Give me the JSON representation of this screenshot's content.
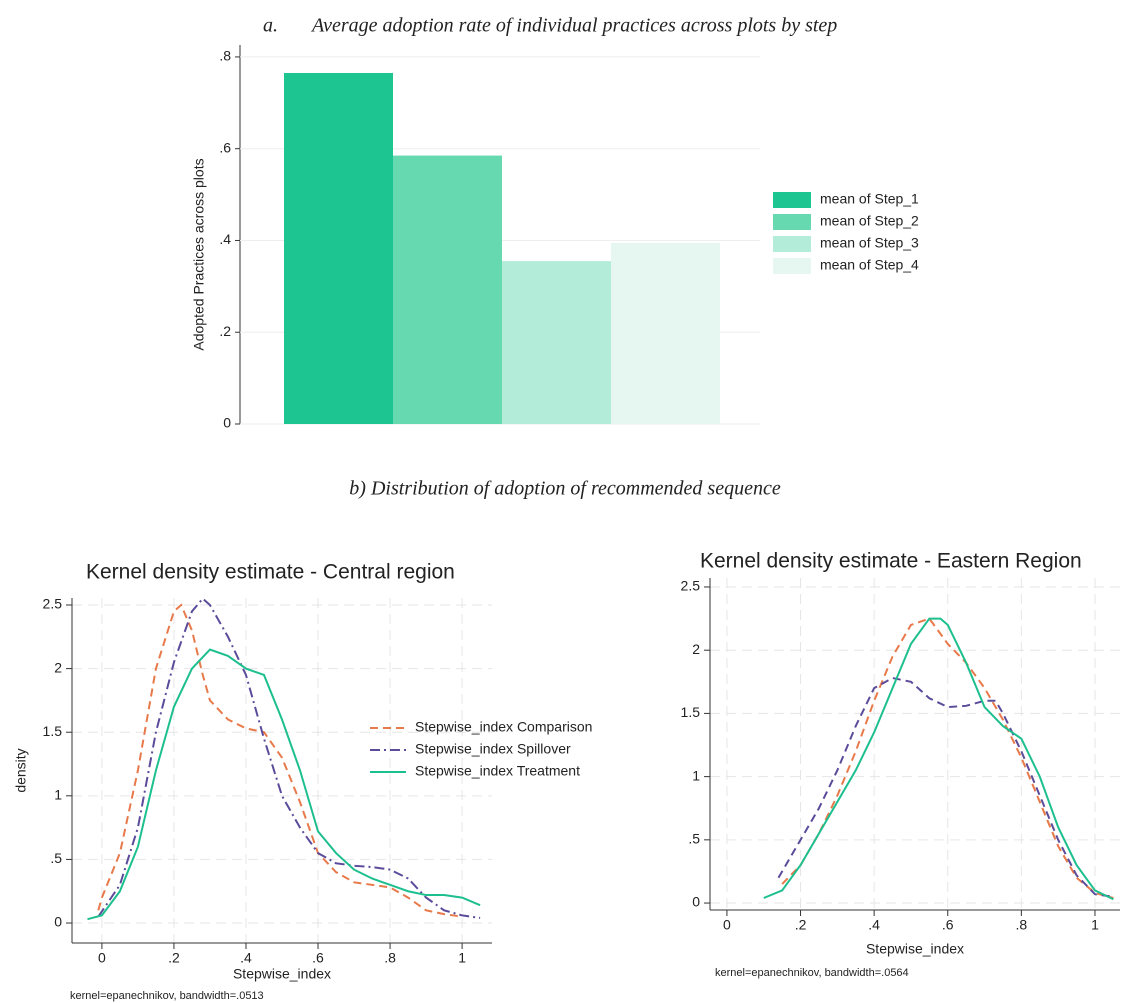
{
  "chart_data": [
    {
      "type": "bar",
      "panel_label": "a.",
      "title": "Average adoption rate of individual practices across plots by step",
      "ylabel": "Adopted Practices across plots",
      "series": [
        {
          "name": "mean of Step_1",
          "color": "#1dc690",
          "values": [
            0.765
          ]
        },
        {
          "name": "mean of Step_2",
          "color": "#66d9b1",
          "values": [
            0.585
          ]
        },
        {
          "name": "mean of Step_3",
          "color": "#b3ecd8",
          "values": [
            0.355
          ]
        },
        {
          "name": "mean of Step_4",
          "color": "#e6f7f1",
          "values": [
            0.395
          ]
        }
      ],
      "ylim": [
        0,
        0.826
      ],
      "yticks": [
        0,
        {
          "value": 0.2,
          "label": ".2"
        },
        {
          "value": 0.4,
          "label": ".4"
        },
        {
          "value": 0.6,
          "label": ".6"
        },
        {
          "value": 0.8,
          "label": ".8"
        }
      ],
      "grid": true,
      "legend": "right"
    },
    {
      "type": "line",
      "title": "Kernel density estimate - Central region",
      "xlabel": "Stepwise_index",
      "ylabel": "density",
      "note": "kernel=epanechnikov, bandwidth=.0513",
      "series": [
        {
          "name": "Stepwise_index Comparison",
          "color": "#e8794a",
          "linestyle": "dashed",
          "x": [
            -0.01,
            0,
            0.05,
            0.1,
            0.15,
            0.2,
            0.22,
            0.25,
            0.28,
            0.3,
            0.35,
            0.4,
            0.45,
            0.5,
            0.55,
            0.6,
            0.65,
            0.7,
            0.8,
            0.85,
            0.9,
            0.95,
            1.0
          ],
          "values": [
            0.1,
            0.2,
            0.55,
            1.2,
            2.0,
            2.45,
            2.5,
            2.3,
            1.95,
            1.75,
            1.6,
            1.53,
            1.5,
            1.3,
            0.95,
            0.55,
            0.4,
            0.32,
            0.28,
            0.2,
            0.1,
            0.07,
            0.05
          ]
        },
        {
          "name": "Stepwise_index Spillover",
          "color": "#5b4b9a",
          "linestyle": "dashdot",
          "x": [
            -0.01,
            0.05,
            0.1,
            0.15,
            0.2,
            0.25,
            0.28,
            0.3,
            0.35,
            0.4,
            0.45,
            0.5,
            0.55,
            0.6,
            0.65,
            0.7,
            0.75,
            0.8,
            0.85,
            0.9,
            0.95,
            1.0,
            1.05
          ],
          "values": [
            0.05,
            0.3,
            0.75,
            1.5,
            2.05,
            2.45,
            2.55,
            2.5,
            2.25,
            1.95,
            1.45,
            1.0,
            0.75,
            0.55,
            0.47,
            0.45,
            0.44,
            0.42,
            0.35,
            0.2,
            0.1,
            0.06,
            0.04
          ]
        },
        {
          "name": "Stepwise_index Treatment",
          "color": "#1dbf8e",
          "linestyle": "solid",
          "x": [
            -0.04,
            0,
            0.05,
            0.1,
            0.15,
            0.2,
            0.25,
            0.3,
            0.35,
            0.4,
            0.45,
            0.5,
            0.55,
            0.6,
            0.65,
            0.7,
            0.75,
            0.8,
            0.85,
            0.9,
            0.95,
            1.0,
            1.05
          ],
          "values": [
            0.03,
            0.06,
            0.25,
            0.6,
            1.2,
            1.7,
            2.0,
            2.15,
            2.1,
            2.0,
            1.95,
            1.6,
            1.2,
            0.72,
            0.55,
            0.42,
            0.35,
            0.3,
            0.25,
            0.22,
            0.22,
            0.2,
            0.14
          ]
        }
      ],
      "xlim": [
        -0.083,
        1.083
      ],
      "xticks": [
        0,
        {
          "value": 0.2,
          "label": ".2"
        },
        {
          "value": 0.4,
          "label": ".4"
        },
        {
          "value": 0.6,
          "label": ".6"
        },
        {
          "value": 0.8,
          "label": ".8"
        },
        1
      ],
      "ylim": [
        -0.157,
        2.555
      ],
      "yticks": [
        0,
        {
          "value": 0.5,
          "label": ".5"
        },
        1,
        1.5,
        2,
        2.5
      ],
      "grid": true,
      "legend": "right"
    },
    {
      "type": "line",
      "title": "Kernel density estimate - Eastern Region",
      "xlabel": "Stepwise_index",
      "note": "kernel=epanechnikov, bandwidth=.0564",
      "series": [
        {
          "color": "#e8794a",
          "linestyle": "dashed",
          "x": [
            0.15,
            0.2,
            0.25,
            0.3,
            0.35,
            0.4,
            0.45,
            0.5,
            0.55,
            0.6,
            0.65,
            0.7,
            0.75,
            0.8,
            0.85,
            0.9,
            0.95,
            1.0,
            1.05
          ],
          "values": [
            0.15,
            0.3,
            0.55,
            0.85,
            1.2,
            1.6,
            1.95,
            2.2,
            2.25,
            2.05,
            1.9,
            1.7,
            1.45,
            1.15,
            0.8,
            0.45,
            0.2,
            0.08,
            0.04
          ]
        },
        {
          "color": "#5b4b9a",
          "linestyle": "dashed",
          "x": [
            0.14,
            0.2,
            0.25,
            0.3,
            0.35,
            0.4,
            0.45,
            0.5,
            0.55,
            0.6,
            0.65,
            0.7,
            0.73,
            0.75,
            0.8,
            0.85,
            0.9,
            0.95,
            1.0,
            1.05
          ],
          "values": [
            0.2,
            0.5,
            0.75,
            1.05,
            1.4,
            1.7,
            1.78,
            1.75,
            1.62,
            1.55,
            1.56,
            1.6,
            1.6,
            1.5,
            1.2,
            0.85,
            0.5,
            0.22,
            0.07,
            0.05
          ]
        },
        {
          "color": "#1dbf8e",
          "linestyle": "solid",
          "x": [
            0.1,
            0.15,
            0.2,
            0.25,
            0.3,
            0.35,
            0.4,
            0.45,
            0.5,
            0.55,
            0.58,
            0.6,
            0.65,
            0.7,
            0.75,
            0.8,
            0.85,
            0.9,
            0.95,
            1.0,
            1.05
          ],
          "values": [
            0.04,
            0.1,
            0.3,
            0.55,
            0.8,
            1.05,
            1.35,
            1.7,
            2.05,
            2.25,
            2.25,
            2.2,
            1.9,
            1.55,
            1.4,
            1.3,
            1.0,
            0.6,
            0.3,
            0.1,
            0.03
          ]
        }
      ],
      "xlim": [
        -0.046,
        1.068
      ],
      "xticks": [
        0,
        {
          "value": 0.2,
          "label": ".2"
        },
        {
          "value": 0.4,
          "label": ".4"
        },
        {
          "value": 0.6,
          "label": ".6"
        },
        {
          "value": 0.8,
          "label": ".8"
        },
        1
      ],
      "ylim": [
        -0.055,
        2.571
      ],
      "yticks": [
        0,
        {
          "value": 0.5,
          "label": ".5"
        },
        1,
        1.5,
        2,
        2.5
      ],
      "grid": true
    }
  ],
  "section_b_title": "b) Distribution of adoption of recommended sequence"
}
